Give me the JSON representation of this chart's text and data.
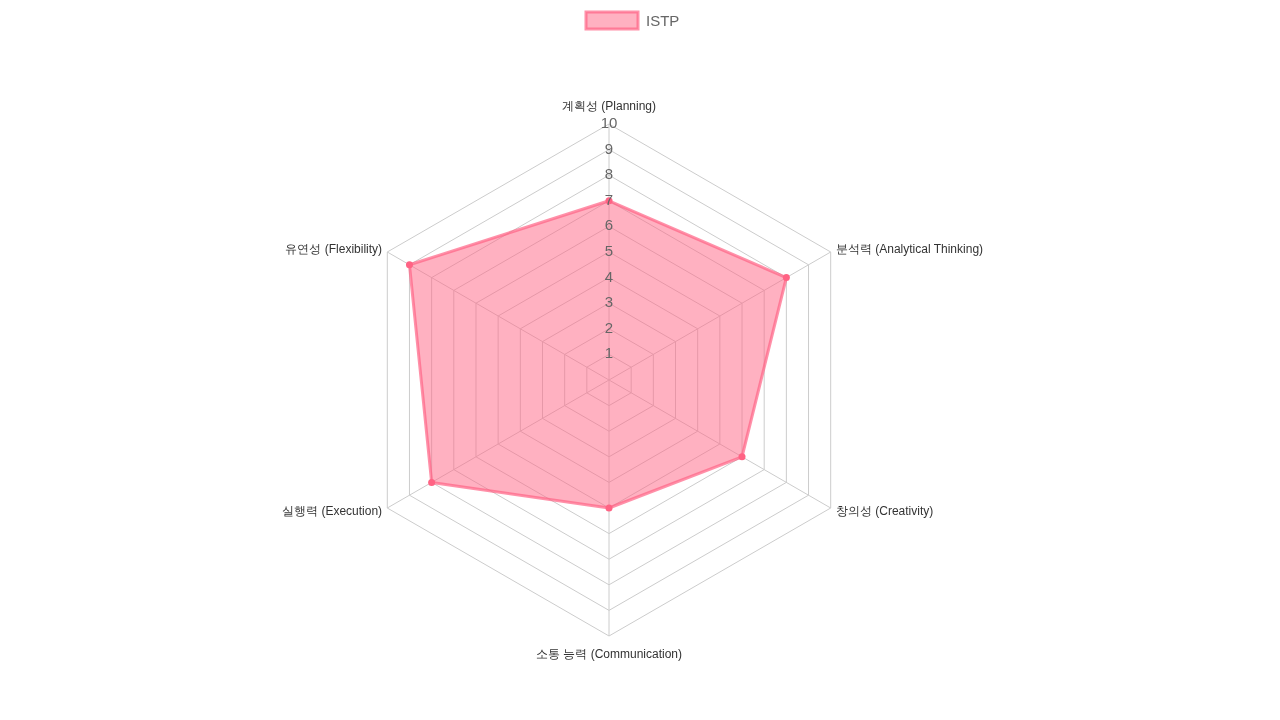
{
  "chart_data": {
    "type": "radar",
    "categories": [
      "계획성 (Planning)",
      "분석력 (Analytical Thinking)",
      "창의성 (Creativity)",
      "소통 능력 (Communication)",
      "실행력 (Execution)",
      "유연성 (Flexibility)"
    ],
    "series": [
      {
        "name": "ISTP",
        "color": "#ff6384",
        "values": [
          7,
          8,
          6,
          5,
          8,
          9
        ]
      }
    ],
    "ylim": [
      0,
      10
    ],
    "yticks": [
      1,
      2,
      3,
      4,
      5,
      6,
      7,
      8,
      9,
      10
    ],
    "grid": true,
    "legend": "top",
    "marker": "circle"
  }
}
